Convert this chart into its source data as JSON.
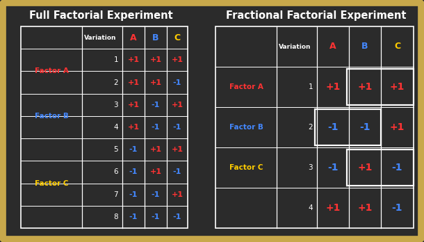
{
  "bg_color": "#2b2b2b",
  "border_color": "#c8a84b",
  "title_color": "#ffffff",
  "title_left": "Full Factorial Experiment",
  "title_right": "Fractional Factorial Experiment",
  "factor_a_color": "#ff3333",
  "factor_b_color": "#4488ff",
  "factor_c_color": "#ffcc00",
  "col_a_color": "#ff3333",
  "col_b_color": "#4488ff",
  "col_c_color": "#ffcc00",
  "pos_color": "#ff3333",
  "neg_color": "#4488ff",
  "full_table": {
    "variations": [
      1,
      2,
      3,
      4,
      5,
      6,
      7,
      8
    ],
    "A": [
      "+1",
      "+1",
      "+1",
      "+1",
      "-1",
      "-1",
      "-1",
      "-1"
    ],
    "B": [
      "+1",
      "+1",
      "-1",
      "-1",
      "+1",
      "+1",
      "-1",
      "-1"
    ],
    "C": [
      "+1",
      "-1",
      "+1",
      "-1",
      "+1",
      "-1",
      "+1",
      "-1"
    ]
  },
  "frac_table": {
    "variations": [
      1,
      2,
      3,
      4
    ],
    "A": [
      "+1",
      "-1",
      "-1",
      "+1"
    ],
    "B": [
      "+1",
      "-1",
      "+1",
      "+1"
    ],
    "C": [
      "+1",
      "+1",
      "-1",
      "-1"
    ]
  }
}
